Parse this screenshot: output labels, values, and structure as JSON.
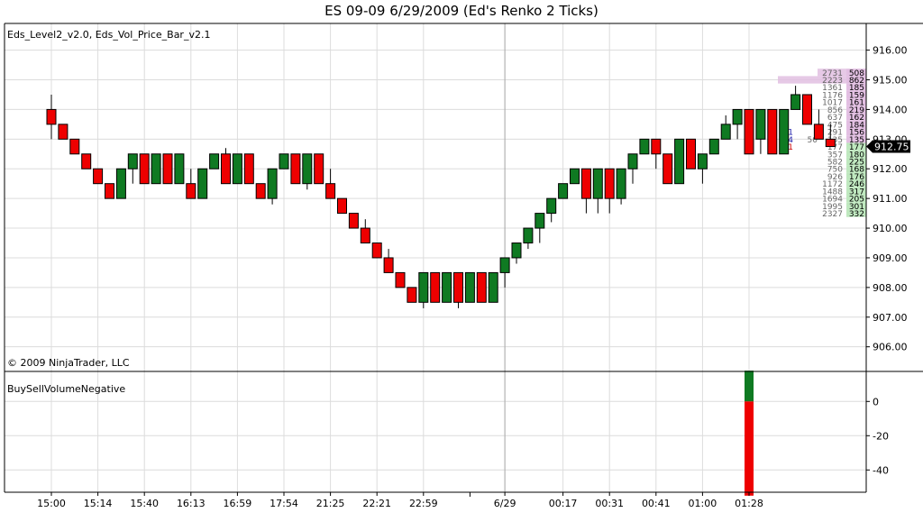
{
  "window": {
    "title": "ES 09-09  6/29/2009 (Ed's Renko 2 Ticks)"
  },
  "price_panel": {
    "indicators_label": "Eds_Level2_v2.0, Eds_Vol_Price_Bar_v2.1",
    "copyright": "© 2009 NinjaTrader, LLC",
    "current_price_label": "912.75"
  },
  "volume_panel": {
    "label": "BuySellVolumeNegative"
  },
  "colors": {
    "up": "#0f7a22",
    "down": "#ee0000",
    "grid": "#dcdcdc",
    "ask_bar": "#e2bfe2",
    "bid_bar": "#bfe8bf",
    "price_tag": "#000000"
  },
  "chart_data": [
    {
      "type": "candlestick",
      "name": "renko-price",
      "y_ticks": [
        906,
        907,
        908,
        909,
        910,
        911,
        912,
        913,
        914,
        915,
        916
      ],
      "y_tick_labels": [
        "906.00",
        "907.00",
        "908.00",
        "909.00",
        "910.00",
        "911.00",
        "912.00",
        "913.00",
        "914.00",
        "915.00",
        "916.00"
      ],
      "ylim": [
        905.2,
        916.9
      ],
      "x_tick_labels": [
        {
          "label": "15:00",
          "bar": 0
        },
        {
          "label": "15:14",
          "bar": 4
        },
        {
          "label": "15:40",
          "bar": 8
        },
        {
          "label": "16:13",
          "bar": 12
        },
        {
          "label": "16:59",
          "bar": 16
        },
        {
          "label": "17:54",
          "bar": 20
        },
        {
          "label": "21:25",
          "bar": 24
        },
        {
          "label": "22:21",
          "bar": 28
        },
        {
          "label": "22:59",
          "bar": 32
        },
        {
          "label": "6/29",
          "bar": 39
        },
        {
          "label": "00:17",
          "bar": 44
        },
        {
          "label": "00:31",
          "bar": 48
        },
        {
          "label": "00:41",
          "bar": 52
        },
        {
          "label": "01:00",
          "bar": 56
        },
        {
          "label": "01:28",
          "bar": 60
        }
      ],
      "session_break_bar": 39,
      "bars": [
        {
          "o": 914.0,
          "c": 913.5,
          "h": 914.5,
          "l": 913.0
        },
        {
          "o": 913.5,
          "c": 913.0,
          "h": 913.5,
          "l": 913.0
        },
        {
          "o": 913.0,
          "c": 912.5,
          "h": 913.0,
          "l": 912.5
        },
        {
          "o": 912.5,
          "c": 912.0,
          "h": 912.5,
          "l": 912.0
        },
        {
          "o": 912.0,
          "c": 911.5,
          "h": 912.0,
          "l": 911.5
        },
        {
          "o": 911.5,
          "c": 911.0,
          "h": 911.5,
          "l": 911.0
        },
        {
          "o": 911.0,
          "c": 912.0,
          "h": 912.0,
          "l": 911.0
        },
        {
          "o": 912.0,
          "c": 912.5,
          "h": 912.5,
          "l": 911.5
        },
        {
          "o": 912.5,
          "c": 911.5,
          "h": 912.5,
          "l": 911.5
        },
        {
          "o": 911.5,
          "c": 912.5,
          "h": 912.5,
          "l": 911.5
        },
        {
          "o": 912.5,
          "c": 911.5,
          "h": 912.5,
          "l": 911.5
        },
        {
          "o": 911.5,
          "c": 912.5,
          "h": 912.5,
          "l": 911.5
        },
        {
          "o": 911.5,
          "c": 911.0,
          "h": 912.0,
          "l": 911.0
        },
        {
          "o": 911.0,
          "c": 912.0,
          "h": 912.0,
          "l": 911.0
        },
        {
          "o": 912.0,
          "c": 912.5,
          "h": 912.5,
          "l": 912.0
        },
        {
          "o": 912.5,
          "c": 911.5,
          "h": 912.7,
          "l": 911.5
        },
        {
          "o": 911.5,
          "c": 912.5,
          "h": 912.5,
          "l": 911.5
        },
        {
          "o": 912.5,
          "c": 911.5,
          "h": 912.5,
          "l": 911.5
        },
        {
          "o": 911.5,
          "c": 911.0,
          "h": 911.5,
          "l": 911.0
        },
        {
          "o": 911.0,
          "c": 912.0,
          "h": 912.0,
          "l": 910.8
        },
        {
          "o": 912.0,
          "c": 912.5,
          "h": 912.5,
          "l": 912.0
        },
        {
          "o": 912.5,
          "c": 911.5,
          "h": 912.5,
          "l": 911.5
        },
        {
          "o": 911.5,
          "c": 912.5,
          "h": 912.5,
          "l": 911.3
        },
        {
          "o": 912.5,
          "c": 911.5,
          "h": 912.5,
          "l": 911.5
        },
        {
          "o": 911.5,
          "c": 911.0,
          "h": 912.0,
          "l": 911.0
        },
        {
          "o": 911.0,
          "c": 910.5,
          "h": 911.0,
          "l": 910.5
        },
        {
          "o": 910.5,
          "c": 910.0,
          "h": 910.5,
          "l": 910.0
        },
        {
          "o": 910.0,
          "c": 909.5,
          "h": 910.3,
          "l": 909.5
        },
        {
          "o": 909.5,
          "c": 909.0,
          "h": 909.5,
          "l": 909.0
        },
        {
          "o": 909.0,
          "c": 908.5,
          "h": 909.3,
          "l": 908.5
        },
        {
          "o": 908.5,
          "c": 908.0,
          "h": 908.5,
          "l": 908.0
        },
        {
          "o": 908.0,
          "c": 907.5,
          "h": 908.0,
          "l": 907.5
        },
        {
          "o": 907.5,
          "c": 908.5,
          "h": 908.5,
          "l": 907.3
        },
        {
          "o": 908.5,
          "c": 907.5,
          "h": 908.5,
          "l": 907.5
        },
        {
          "o": 907.5,
          "c": 908.5,
          "h": 908.5,
          "l": 907.5
        },
        {
          "o": 908.5,
          "c": 907.5,
          "h": 908.5,
          "l": 907.3
        },
        {
          "o": 907.5,
          "c": 908.5,
          "h": 908.5,
          "l": 907.5
        },
        {
          "o": 908.5,
          "c": 907.5,
          "h": 908.5,
          "l": 907.5
        },
        {
          "o": 907.5,
          "c": 908.5,
          "h": 908.5,
          "l": 907.5
        },
        {
          "o": 908.5,
          "c": 909.0,
          "h": 909.0,
          "l": 908.0
        },
        {
          "o": 909.0,
          "c": 909.5,
          "h": 909.5,
          "l": 908.8
        },
        {
          "o": 909.5,
          "c": 910.0,
          "h": 910.0,
          "l": 909.3
        },
        {
          "o": 910.0,
          "c": 910.5,
          "h": 910.5,
          "l": 909.5
        },
        {
          "o": 910.5,
          "c": 911.0,
          "h": 911.0,
          "l": 910.2
        },
        {
          "o": 911.0,
          "c": 911.5,
          "h": 911.5,
          "l": 911.0
        },
        {
          "o": 911.5,
          "c": 912.0,
          "h": 912.0,
          "l": 911.5
        },
        {
          "o": 912.0,
          "c": 911.0,
          "h": 912.0,
          "l": 910.5
        },
        {
          "o": 911.0,
          "c": 912.0,
          "h": 912.0,
          "l": 910.5
        },
        {
          "o": 912.0,
          "c": 911.0,
          "h": 912.0,
          "l": 910.5
        },
        {
          "o": 911.0,
          "c": 912.0,
          "h": 912.0,
          "l": 910.8
        },
        {
          "o": 912.0,
          "c": 912.5,
          "h": 912.5,
          "l": 911.5
        },
        {
          "o": 912.5,
          "c": 913.0,
          "h": 913.0,
          "l": 912.5
        },
        {
          "o": 913.0,
          "c": 912.5,
          "h": 913.0,
          "l": 912.0
        },
        {
          "o": 912.5,
          "c": 911.5,
          "h": 912.5,
          "l": 911.5
        },
        {
          "o": 911.5,
          "c": 913.0,
          "h": 913.0,
          "l": 911.5
        },
        {
          "o": 913.0,
          "c": 912.0,
          "h": 913.0,
          "l": 912.0
        },
        {
          "o": 912.0,
          "c": 912.5,
          "h": 912.5,
          "l": 911.5
        },
        {
          "o": 912.5,
          "c": 913.0,
          "h": 913.0,
          "l": 912.5
        },
        {
          "o": 913.0,
          "c": 913.5,
          "h": 913.8,
          "l": 913.0
        },
        {
          "o": 913.5,
          "c": 914.0,
          "h": 914.0,
          "l": 913.0
        },
        {
          "o": 914.0,
          "c": 912.5,
          "h": 914.0,
          "l": 912.5
        },
        {
          "o": 913.0,
          "c": 914.0,
          "h": 914.0,
          "l": 912.5
        },
        {
          "o": 914.0,
          "c": 912.5,
          "h": 914.0,
          "l": 912.5
        },
        {
          "o": 912.5,
          "c": 914.0,
          "h": 914.0,
          "l": 912.5
        },
        {
          "o": 914.0,
          "c": 914.5,
          "h": 914.8,
          "l": 914.0
        },
        {
          "o": 914.5,
          "c": 913.5,
          "h": 914.5,
          "l": 913.5
        },
        {
          "o": 913.5,
          "c": 913.0,
          "h": 914.0,
          "l": 913.0
        },
        {
          "o": 913.0,
          "c": 912.75,
          "h": 913.5,
          "l": 912.75
        }
      ]
    },
    {
      "type": "table",
      "name": "level2-book",
      "columns": [
        "price",
        "ask_volume",
        "bid_volume"
      ],
      "rows": [
        {
          "price": 915.25,
          "ask": "2731",
          "bid": "508",
          "side": "ask"
        },
        {
          "price": 915.0,
          "ask": "2223",
          "bid": "862",
          "side": "ask"
        },
        {
          "price": 914.75,
          "ask": "1361",
          "bid": "185",
          "side": "ask"
        },
        {
          "price": 914.5,
          "ask": "1176",
          "bid": "159",
          "side": "ask"
        },
        {
          "price": 914.25,
          "ask": "1017",
          "bid": "161",
          "side": "ask"
        },
        {
          "price": 914.0,
          "ask": "856",
          "bid": "219",
          "side": "ask"
        },
        {
          "price": 913.75,
          "ask": "637",
          "bid": "162",
          "side": "ask"
        },
        {
          "price": 913.5,
          "ask": "475",
          "bid": "184",
          "side": "ask"
        },
        {
          "price": 913.25,
          "ask": "291",
          "bid": "156",
          "side": "ask"
        },
        {
          "price": 913.0,
          "ask": "135",
          "bid": "135",
          "side": "ask"
        },
        {
          "price": 912.75,
          "ask": "177",
          "bid": "177",
          "side": "bid"
        },
        {
          "price": 912.5,
          "ask": "357",
          "bid": "180",
          "side": "bid"
        },
        {
          "price": 912.25,
          "ask": "582",
          "bid": "225",
          "side": "bid"
        },
        {
          "price": 912.0,
          "ask": "750",
          "bid": "168",
          "side": "bid"
        },
        {
          "price": 911.75,
          "ask": "926",
          "bid": "176",
          "side": "bid"
        },
        {
          "price": 911.5,
          "ask": "1172",
          "bid": "246",
          "side": "bid"
        },
        {
          "price": 911.25,
          "ask": "1488",
          "bid": "317",
          "side": "bid"
        },
        {
          "price": 911.0,
          "ask": "1694",
          "bid": "205",
          "side": "bid"
        },
        {
          "price": 910.75,
          "ask": "1995",
          "bid": "301",
          "side": "bid"
        },
        {
          "price": 910.5,
          "ask": "2327",
          "bid": "332",
          "side": "bid"
        }
      ],
      "prints": [
        {
          "price": 913.25,
          "buy": "1",
          "sell": ""
        },
        {
          "price": 913.0,
          "buy": "14",
          "sell": "50"
        },
        {
          "price": 912.75,
          "buy": "1",
          "sell": ""
        }
      ],
      "ask_bar_lengths": [
        {
          "price": 915.25,
          "value": 0.32
        },
        {
          "price": 915.0,
          "value": 0.76
        }
      ]
    },
    {
      "type": "bar",
      "name": "BuySellVolumeNegative",
      "y_ticks": [
        0,
        -20,
        -40
      ],
      "y_tick_labels": [
        "0",
        "-20",
        "-40"
      ],
      "ylim": [
        -53,
        17
      ],
      "bars": [
        {
          "bar": 60,
          "buy": 18,
          "sell": -55
        }
      ]
    }
  ]
}
